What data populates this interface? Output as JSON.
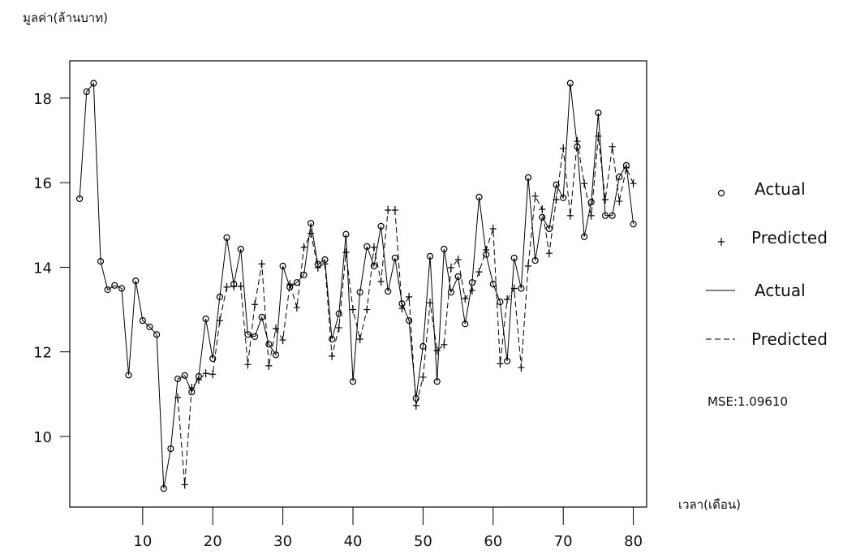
{
  "chart_data": {
    "type": "line",
    "y_label": "มูลค่า(ล้านบาท)",
    "x_label": "เวลา(เดือน)",
    "annotation": "MSE:1.09610",
    "x": [
      1,
      2,
      3,
      4,
      5,
      6,
      7,
      8,
      9,
      10,
      11,
      12,
      13,
      14,
      15,
      16,
      17,
      18,
      19,
      20,
      21,
      22,
      23,
      24,
      25,
      26,
      27,
      28,
      29,
      30,
      31,
      32,
      33,
      34,
      35,
      36,
      37,
      38,
      39,
      40,
      41,
      42,
      43,
      44,
      45,
      46,
      47,
      48,
      49,
      50,
      51,
      52,
      53,
      54,
      55,
      56,
      57,
      58,
      59,
      60,
      61,
      62,
      63,
      64,
      65,
      66,
      67,
      68,
      69,
      70,
      71,
      72,
      73,
      74,
      75,
      76,
      77,
      78,
      79,
      80
    ],
    "series": [
      {
        "name": "Actual",
        "color": "#000000",
        "marker": "circle",
        "dashed": false,
        "values": [
          15.62,
          18.15,
          18.35,
          14.14,
          13.47,
          13.57,
          13.5,
          11.45,
          13.68,
          12.74,
          12.59,
          12.41,
          8.77,
          9.71,
          11.36,
          11.44,
          11.05,
          11.42,
          12.78,
          11.84,
          13.3,
          14.7,
          13.6,
          14.43,
          12.41,
          12.36,
          12.82,
          12.18,
          11.93,
          14.03,
          13.53,
          13.64,
          13.82,
          15.04,
          14.07,
          14.18,
          12.3,
          12.9,
          14.78,
          11.3,
          13.41,
          14.49,
          14.03,
          14.97,
          13.43,
          14.22,
          13.14,
          12.74,
          10.9,
          12.13,
          14.26,
          11.3,
          14.43,
          13.41,
          13.78,
          12.66,
          13.64,
          15.66,
          14.3,
          13.6,
          13.18,
          11.78,
          14.22,
          13.5,
          16.12,
          14.16,
          15.18,
          14.91,
          15.95,
          15.64,
          18.35,
          16.85,
          14.72,
          15.54,
          17.65,
          15.22,
          15.22,
          16.14,
          16.41,
          15.02
        ]
      },
      {
        "name": "Predicted",
        "color": "#000000",
        "marker": "plus",
        "dashed": true,
        "values": [
          null,
          null,
          null,
          null,
          null,
          null,
          null,
          null,
          null,
          null,
          null,
          null,
          null,
          null,
          10.92,
          8.86,
          11.15,
          11.34,
          11.49,
          11.47,
          12.74,
          13.53,
          13.55,
          13.55,
          11.7,
          13.12,
          14.08,
          11.67,
          12.55,
          12.28,
          13.6,
          13.05,
          14.47,
          14.8,
          13.99,
          14.08,
          11.9,
          12.57,
          14.35,
          13.0,
          12.3,
          13.0,
          14.47,
          13.66,
          15.35,
          15.35,
          13.03,
          13.3,
          10.73,
          11.4,
          13.16,
          12.03,
          12.17,
          13.99,
          14.18,
          13.26,
          13.45,
          13.89,
          14.41,
          14.91,
          11.72,
          13.24,
          13.5,
          11.63,
          14.03,
          15.68,
          15.37,
          14.33,
          15.6,
          16.81,
          15.22,
          16.98,
          15.98,
          15.22,
          17.1,
          15.6,
          16.85,
          15.56,
          16.35,
          15.98
        ]
      }
    ],
    "xlim": [
      -0.4,
      81.9
    ],
    "ylim": [
      8.33,
      18.88
    ],
    "xticks": [
      10,
      20,
      30,
      40,
      50,
      60,
      70,
      80
    ],
    "yticks": [
      10,
      12,
      14,
      16,
      18
    ]
  }
}
